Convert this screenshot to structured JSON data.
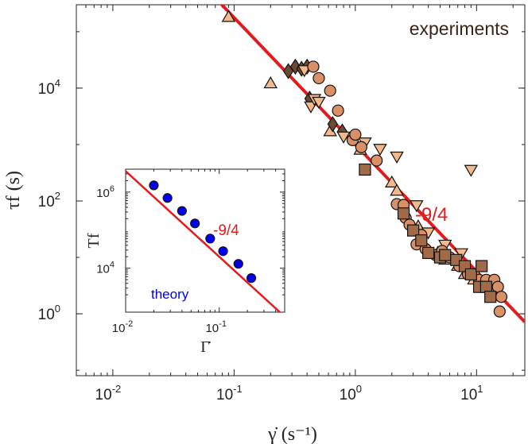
{
  "chart_data": [
    {
      "type": "scatter",
      "title": "",
      "xlabel": "γ̇ (s⁻¹)",
      "ylabel": "τf (s)",
      "x_scale": "log",
      "y_scale": "log",
      "xlim": [
        0.005,
        25
      ],
      "ylim": [
        0.08,
        300000
      ],
      "x_ticks": [
        0.01,
        0.1,
        1,
        10
      ],
      "x_tick_labels": [
        {
          "base": "10",
          "exp": "-2"
        },
        {
          "base": "10",
          "exp": "-1"
        },
        {
          "base": "10",
          "exp": "0"
        },
        {
          "base": "10",
          "exp": "1"
        }
      ],
      "y_ticks": [
        1,
        100,
        10000
      ],
      "y_tick_labels": [
        {
          "base": "10",
          "exp": "0"
        },
        {
          "base": "10",
          "exp": "2"
        },
        {
          "base": "10",
          "exp": "4"
        }
      ],
      "annotation": "experiments",
      "fit_label": "-9/4",
      "fit_line": {
        "slope": -2.25,
        "x0": 1,
        "y0": 1000,
        "color": "#e41a1c"
      },
      "series": [
        {
          "name": "triangles-up",
          "marker": "triangle-up",
          "color": "#f3b98a",
          "points": [
            [
              0.09,
              180000
            ],
            [
              0.2,
              12000
            ],
            [
              0.62,
              1700
            ],
            [
              1.1,
              800
            ],
            [
              2.0,
              210
            ],
            [
              2.2,
              150
            ],
            [
              3.3,
              35
            ],
            [
              4.8,
              12
            ],
            [
              5.5,
              9
            ],
            [
              7.0,
              7
            ],
            [
              8.0,
              5
            ],
            [
              9.5,
              4
            ],
            [
              12,
              3
            ]
          ]
        },
        {
          "name": "diamonds",
          "marker": "diamond",
          "color": "#6b4a33",
          "points": [
            [
              0.28,
              20000
            ],
            [
              0.32,
              24000
            ],
            [
              0.36,
              22000
            ],
            [
              0.4,
              24000
            ],
            [
              0.42,
              6500
            ],
            [
              0.65,
              2300
            ],
            [
              0.78,
              1700
            ]
          ]
        },
        {
          "name": "triangles-down",
          "marker": "triangle-down",
          "color": "#f3b98a",
          "points": [
            [
              0.38,
              21000
            ],
            [
              0.43,
              4800
            ],
            [
              0.46,
              6500
            ],
            [
              0.5,
              5800
            ],
            [
              0.8,
              1400
            ],
            [
              1.2,
              1100
            ],
            [
              1.6,
              850
            ],
            [
              2.2,
              620
            ],
            [
              3.2,
              85
            ],
            [
              4.0,
              28
            ],
            [
              5.5,
              17
            ],
            [
              7.5,
              12
            ],
            [
              9.0,
              360
            ]
          ]
        },
        {
          "name": "circles",
          "marker": "circle",
          "color": "#d99066",
          "points": [
            [
              0.45,
              24000
            ],
            [
              0.5,
              15000
            ],
            [
              0.62,
              9000
            ],
            [
              0.72,
              4000
            ],
            [
              0.95,
              1200
            ],
            [
              1.0,
              1500
            ],
            [
              1.12,
              900
            ],
            [
              1.5,
              520
            ],
            [
              2.2,
              88
            ],
            [
              2.5,
              85
            ],
            [
              2.6,
              50
            ],
            [
              2.8,
              38
            ],
            [
              3.2,
              17
            ],
            [
              3.5,
              25
            ],
            [
              3.8,
              14
            ],
            [
              4.6,
              11
            ],
            [
              5.2,
              13
            ],
            [
              6.0,
              10
            ],
            [
              7.2,
              7
            ],
            [
              8.5,
              5
            ],
            [
              9.5,
              5
            ],
            [
              10.5,
              4
            ],
            [
              12,
              4
            ],
            [
              13,
              3
            ],
            [
              14,
              4
            ],
            [
              15,
              3
            ],
            [
              16,
              2
            ],
            [
              15.5,
              1.1
            ]
          ]
        },
        {
          "name": "squares",
          "marker": "square",
          "color": "#a26b48",
          "points": [
            [
              1.2,
              360
            ],
            [
              2.5,
              60
            ],
            [
              3.0,
              30
            ],
            [
              3.5,
              20
            ],
            [
              4.0,
              12
            ],
            [
              5.0,
              10
            ],
            [
              5.5,
              11
            ],
            [
              6.8,
              9
            ],
            [
              8.0,
              7
            ],
            [
              9.0,
              5
            ],
            [
              10.5,
              3
            ],
            [
              12,
              3
            ],
            [
              13,
              2
            ],
            [
              11,
              7
            ]
          ]
        }
      ]
    },
    {
      "type": "scatter",
      "title": "",
      "xlabel": "Γ̇",
      "ylabel": "Tf",
      "x_scale": "log",
      "y_scale": "log",
      "xlim": [
        0.01,
        0.5
      ],
      "ylim": [
        700,
        4000000
      ],
      "x_ticks": [
        0.01,
        0.1
      ],
      "x_tick_labels": [
        {
          "base": "10",
          "exp": "-2"
        },
        {
          "base": "10",
          "exp": "-1"
        }
      ],
      "y_ticks": [
        10000,
        1000000
      ],
      "y_tick_labels": [
        {
          "base": "10",
          "exp": "4"
        },
        {
          "base": "10",
          "exp": "6"
        }
      ],
      "annotation": "theory",
      "fit_label": "-9/4",
      "fit_line": {
        "slope": -2.25,
        "x0": 0.1,
        "y0": 20000,
        "color": "#e41a1c"
      },
      "series": [
        {
          "name": "theory",
          "marker": "circle",
          "color": "#0000ee",
          "points": [
            [
              0.02,
              1500000
            ],
            [
              0.028,
              700000
            ],
            [
              0.04,
              320000
            ],
            [
              0.055,
              150000
            ],
            [
              0.08,
              60000
            ],
            [
              0.11,
              28000
            ],
            [
              0.16,
              13000
            ],
            [
              0.22,
              5500
            ]
          ]
        }
      ]
    }
  ]
}
